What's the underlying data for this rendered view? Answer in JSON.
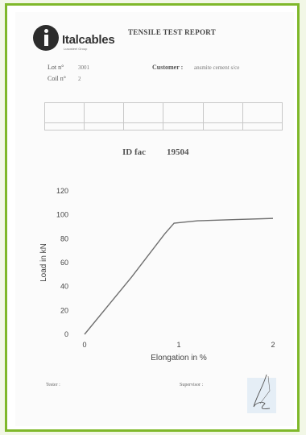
{
  "header": {
    "brand": "Italcables",
    "brand_sub": "Lusosteel Group",
    "title": "TENSILE TEST REPORT",
    "subtitle": "",
    "corner_text": ""
  },
  "info": {
    "lot_label": "Lot n°",
    "lot_value": "3001",
    "coil_label": "Coil n°",
    "coil_value": "2",
    "customer_label": "Customer :",
    "customer_value": "ansmite cement s/ce"
  },
  "table": {
    "headers": [
      "",
      "",
      "",
      "",
      "",
      ""
    ],
    "rows": [
      [
        "",
        "",
        "",
        "",
        "",
        ""
      ]
    ]
  },
  "id": {
    "label": "ID fac",
    "value": "19504"
  },
  "chart_data": {
    "type": "line",
    "xlabel": "Elongation in %",
    "ylabel": "Load in kN",
    "xlim": [
      0,
      2
    ],
    "ylim": [
      0,
      120
    ],
    "x_ticks": [
      0,
      1,
      2
    ],
    "y_ticks": [
      0,
      20,
      40,
      60,
      80,
      100,
      120
    ],
    "grid": false,
    "series": [
      {
        "x": [
          0,
          0.5,
          0.85,
          0.95,
          1.2,
          1.6,
          2.0
        ],
        "y": [
          0,
          48,
          84,
          93,
          95,
          96,
          97
        ]
      }
    ],
    "color": "#6f6f6f"
  },
  "footer": {
    "tester_label": "Tester :",
    "supervisor_label": "Supervisor :"
  }
}
